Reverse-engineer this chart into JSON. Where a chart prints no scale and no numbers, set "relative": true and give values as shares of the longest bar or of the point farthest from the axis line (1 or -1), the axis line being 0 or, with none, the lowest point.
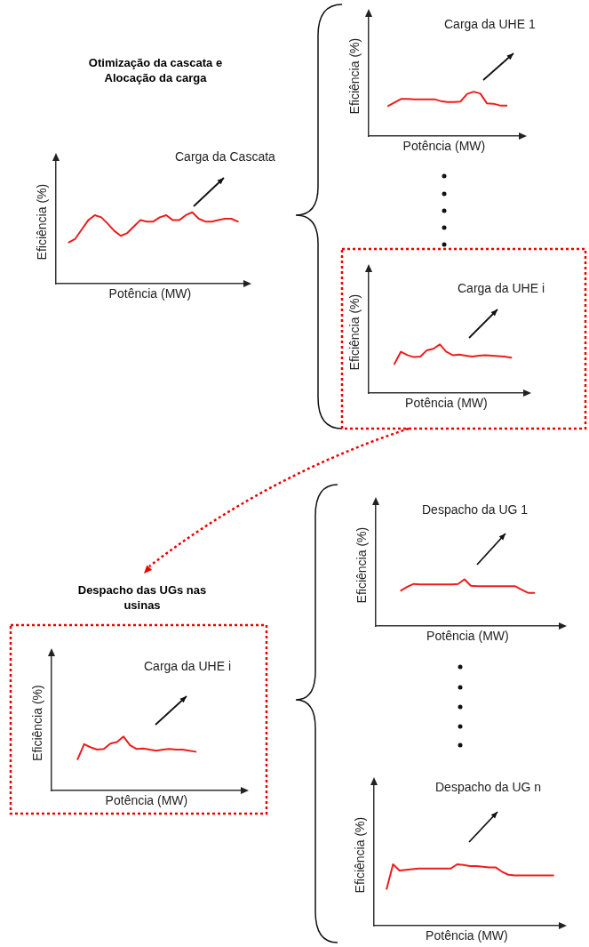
{
  "chart_data": [
    {
      "type": "line",
      "relative": true,
      "title": "Otimização da cascata e Alocação da carga",
      "xlabel": "Potência (MW)",
      "ylabel": "Eficiência (%)",
      "annotations": [
        "Carga da Cascata"
      ],
      "grid": false,
      "legend": false,
      "marker": "none",
      "line_style": "solid",
      "categories": [
        null,
        null,
        null,
        null,
        null,
        null,
        null,
        null,
        null,
        null,
        null,
        null,
        null,
        null,
        null,
        null,
        null,
        null,
        null,
        null,
        null,
        null,
        null,
        null,
        null,
        null,
        null
      ],
      "series": [
        {
          "color": "#ee1c1c",
          "values": [
            0.58,
            0.63,
            0.76,
            0.89,
            0.96,
            0.93,
            0.84,
            0.74,
            0.67,
            0.71,
            0.8,
            0.89,
            0.87,
            0.87,
            0.93,
            0.96,
            0.89,
            0.89,
            0.96,
            1,
            0.91,
            0.87,
            0.87,
            0.89,
            0.91,
            0.91,
            0.87
          ]
        }
      ]
    },
    {
      "type": "line",
      "relative": true,
      "xlabel": "Potência (MW)",
      "ylabel": "Eficiência (%)",
      "annotations": [
        "Carga da UHE 1"
      ],
      "grid": false,
      "legend": false,
      "marker": "none",
      "line_style": "solid",
      "categories": [
        null,
        null,
        null,
        null,
        null,
        null,
        null,
        null,
        null,
        null,
        null,
        null,
        null,
        null,
        null,
        null,
        null,
        null,
        null
      ],
      "series": [
        {
          "color": "#ee1c1c",
          "values": [
            0.68,
            0.76,
            0.84,
            0.84,
            0.83,
            0.83,
            0.83,
            0.83,
            0.79,
            0.77,
            0.77,
            0.78,
            0.95,
            1,
            0.96,
            0.74,
            0.73,
            0.69,
            0.69
          ]
        }
      ]
    },
    {
      "type": "line",
      "relative": true,
      "xlabel": "Potência (MW)",
      "ylabel": "Eficiência (%)",
      "annotations": [
        "Carga da UHE i"
      ],
      "grid": false,
      "legend": false,
      "marker": "none",
      "line_style": "solid",
      "categories": [
        null,
        null,
        null,
        null,
        null,
        null,
        null,
        null,
        null,
        null,
        null,
        null,
        null,
        null,
        null,
        null,
        null,
        null,
        null
      ],
      "series": [
        {
          "color": "#ee1c1c",
          "values": [
            0.6,
            0.85,
            0.78,
            0.74,
            0.75,
            0.88,
            0.91,
            1,
            0.85,
            0.78,
            0.79,
            0.77,
            0.75,
            0.77,
            0.78,
            0.77,
            0.76,
            0.75,
            0.73
          ]
        }
      ]
    },
    {
      "type": "line",
      "relative": true,
      "xlabel": "Potência (MW)",
      "ylabel": "Eficiência (%)",
      "annotations": [
        "Despacho da UG 1"
      ],
      "grid": false,
      "legend": false,
      "marker": "none",
      "line_style": "solid",
      "categories": [
        null,
        null,
        null,
        null,
        null,
        null,
        null,
        null,
        null,
        null,
        null,
        null,
        null,
        null,
        null,
        null,
        null,
        null,
        null,
        null,
        null,
        null
      ],
      "series": [
        {
          "color": "#ee1c1c",
          "values": [
            0.76,
            0.84,
            0.9,
            0.89,
            0.89,
            0.89,
            0.89,
            0.89,
            0.89,
            0.9,
            1,
            0.86,
            0.85,
            0.85,
            0.85,
            0.85,
            0.85,
            0.85,
            0.85,
            0.78,
            0.71,
            0.71
          ]
        }
      ]
    },
    {
      "type": "line",
      "relative": true,
      "title": "Despacho das UGs nas usinas",
      "xlabel": "Potência (MW)",
      "ylabel": "Eficiência (%)",
      "annotations": [
        "Carga da UHE i"
      ],
      "grid": false,
      "legend": false,
      "marker": "none",
      "line_style": "solid",
      "categories": [
        null,
        null,
        null,
        null,
        null,
        null,
        null,
        null,
        null,
        null,
        null,
        null,
        null,
        null,
        null,
        null,
        null,
        null,
        null
      ],
      "series": [
        {
          "color": "#ee1c1c",
          "values": [
            0.58,
            0.86,
            0.8,
            0.76,
            0.77,
            0.87,
            0.9,
            1,
            0.84,
            0.77,
            0.78,
            0.76,
            0.74,
            0.76,
            0.77,
            0.76,
            0.76,
            0.74,
            0.72
          ]
        }
      ]
    },
    {
      "type": "line",
      "relative": true,
      "xlabel": "Potência (MW)",
      "ylabel": "Eficiência (%)",
      "annotations": [
        "Despacho da UG n"
      ],
      "grid": false,
      "legend": false,
      "marker": "none",
      "line_style": "solid",
      "categories": [
        null,
        null,
        null,
        null,
        null,
        null,
        null,
        null,
        null,
        null,
        null,
        null,
        null,
        null,
        null,
        null,
        null,
        null,
        null,
        null,
        null,
        null,
        null,
        null,
        null,
        null,
        null
      ],
      "series": [
        {
          "color": "#ee1c1c",
          "values": [
            0.6,
            1,
            0.9,
            0.91,
            0.92,
            0.93,
            0.93,
            0.93,
            0.93,
            0.93,
            0.93,
            1,
            0.99,
            0.97,
            0.97,
            0.96,
            0.95,
            0.95,
            0.88,
            0.83,
            0.82,
            0.82,
            0.82,
            0.82,
            0.82,
            0.82,
            0.82
          ]
        }
      ]
    }
  ]
}
